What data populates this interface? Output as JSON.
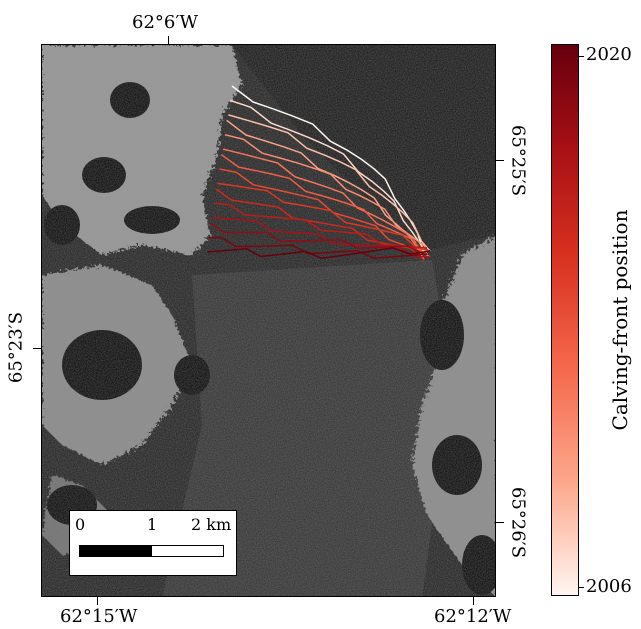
{
  "axes": {
    "top_lon": "62°6′W",
    "bottom_left_lon": "62°15′W",
    "bottom_right_lon": "62°12′W",
    "left_lat": "65°23′S",
    "right_lat_top": "65°25′S",
    "right_lat_bottom": "65°26′S"
  },
  "scalebar": {
    "label_0": "0",
    "label_1": "1",
    "label_2": "2 km"
  },
  "colorbar": {
    "title": "Calving-front position",
    "max_label": "2020",
    "min_label": "2006",
    "colors": [
      "#67000d",
      "#a50f15",
      "#d7301f",
      "#f4664a",
      "#fca98d",
      "#fff5f0"
    ]
  },
  "map": {
    "background": "SAR imagery (grayscale)",
    "front_years": [
      2006,
      2007,
      2008,
      2009,
      2010,
      2011,
      2012,
      2013,
      2014,
      2015,
      2016,
      2017,
      2018,
      2019,
      2020
    ]
  }
}
